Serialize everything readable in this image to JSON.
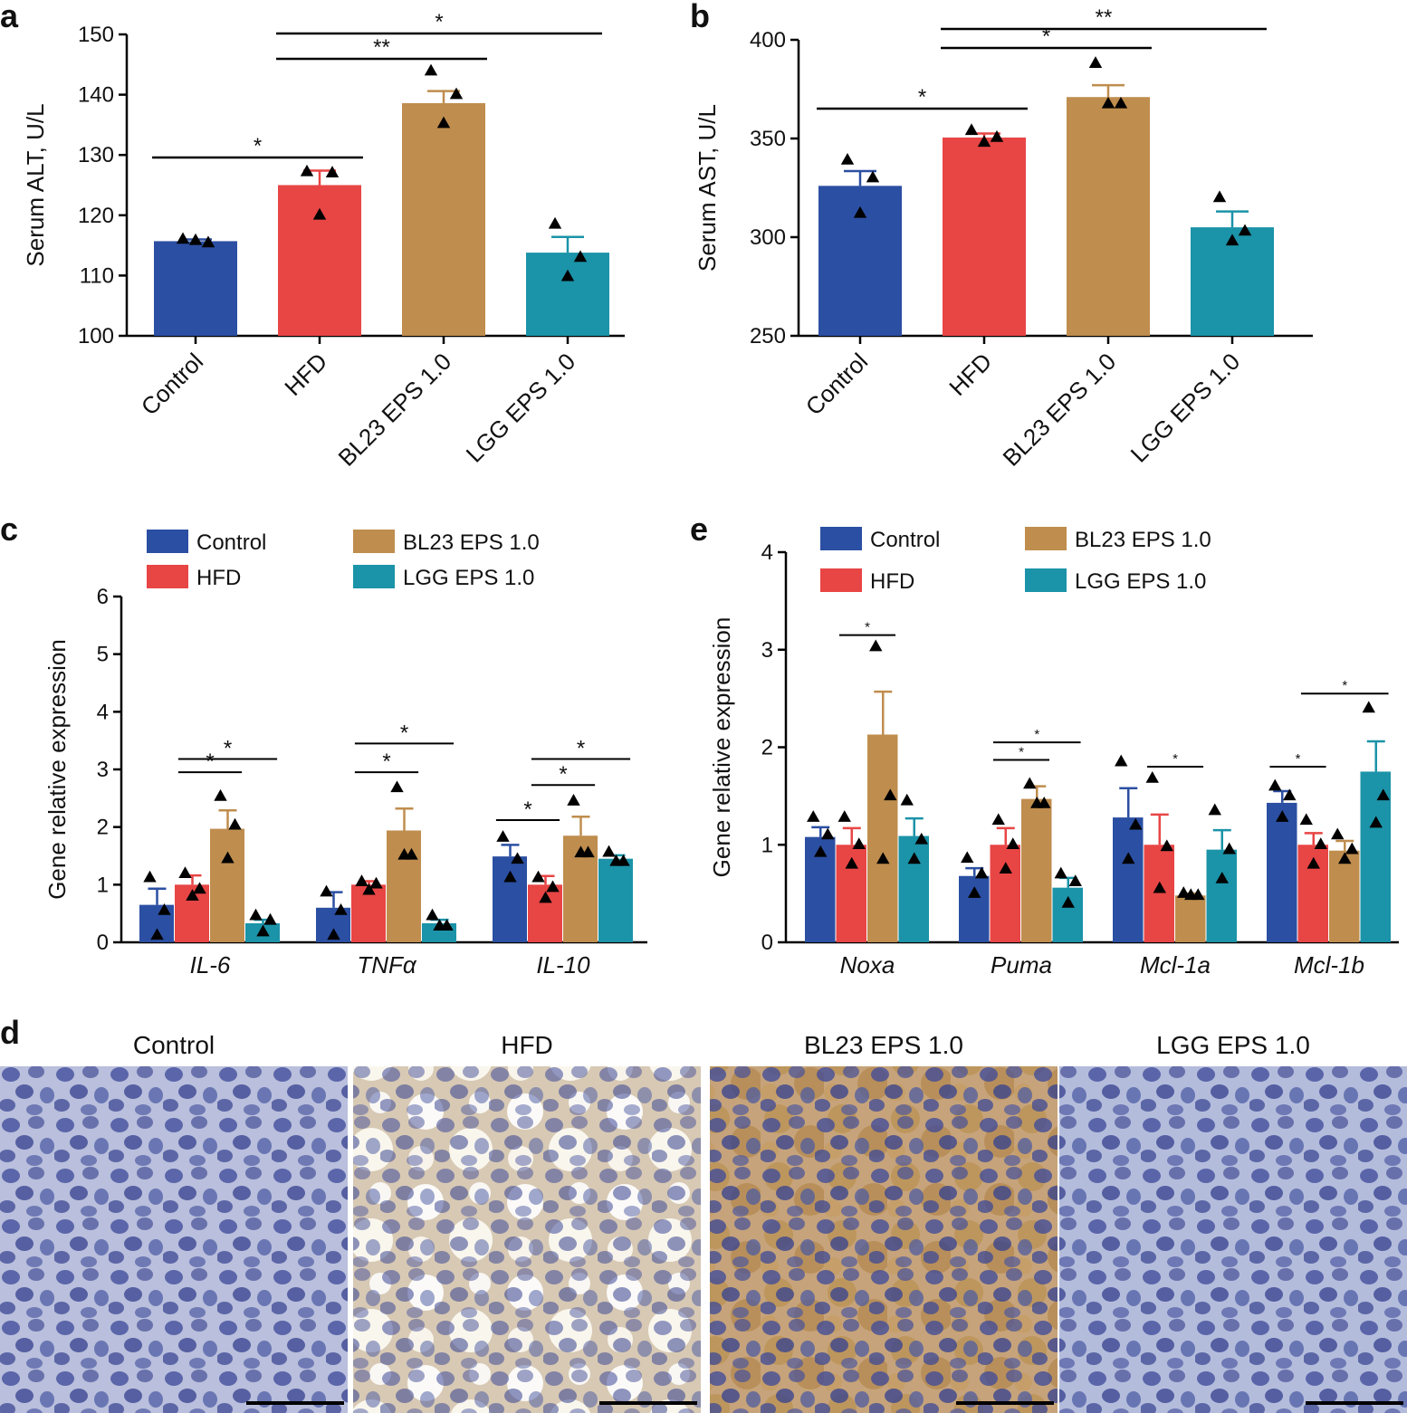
{
  "colors": {
    "Control": "#2b4fa2",
    "HFD": "#e84545",
    "BL23 EPS 1.0": "#bf8d4e",
    "LGG EPS 1.0": "#1b93a8"
  },
  "chart_data": [
    {
      "panel": "a",
      "type": "bar",
      "ylabel": "Serum ALT, U/L",
      "ylim": [
        100,
        150
      ],
      "yticks": [
        100,
        110,
        120,
        130,
        140,
        150
      ],
      "categories": [
        "Control",
        "HFD",
        "BL23 EPS 1.0",
        "LGG EPS 1.0"
      ],
      "values": [
        115.7,
        125.0,
        138.6,
        113.8
      ],
      "errors": [
        0.3,
        2.4,
        2.0,
        2.6
      ],
      "points": [
        [
          116.0,
          115.4,
          115.8
        ],
        [
          127.2,
          127.0,
          120.0
        ],
        [
          143.9,
          140.0,
          135.2
        ],
        [
          118.5,
          113.0,
          109.8
        ]
      ],
      "significance": [
        {
          "from": 0,
          "to": 1,
          "label": "*"
        },
        {
          "from": 1,
          "to": 2,
          "label": "**"
        },
        {
          "from": 1,
          "to": 3,
          "label": "*"
        }
      ]
    },
    {
      "panel": "b",
      "type": "bar",
      "ylabel": "Serum AST, U/L",
      "ylim": [
        250,
        400
      ],
      "yticks": [
        250,
        300,
        350,
        400
      ],
      "categories": [
        "Control",
        "HFD",
        "BL23 EPS 1.0",
        "LGG EPS 1.0"
      ],
      "values": [
        326.0,
        350.5,
        371.0,
        305.0
      ],
      "errors": [
        7.5,
        2.0,
        6.0,
        8.0
      ],
      "points": [
        [
          339.0,
          330.0,
          312.0
        ],
        [
          354.0,
          350.5,
          348.0
        ],
        [
          388.0,
          367.5,
          367.5
        ],
        [
          320.0,
          303.0,
          298.0
        ]
      ],
      "significance": [
        {
          "from": 0,
          "to": 1,
          "label": "*"
        },
        {
          "from": 1,
          "to": 2,
          "label": "*"
        },
        {
          "from": 1,
          "to": 3,
          "label": "**"
        }
      ]
    },
    {
      "panel": "c",
      "type": "bar",
      "ylabel": "Gene relative expression",
      "ylim": [
        0,
        6
      ],
      "yticks": [
        0,
        1,
        2,
        3,
        4,
        5,
        6
      ],
      "categories": [
        "IL-6",
        "TNFα",
        "IL-10"
      ],
      "legend": [
        "Control",
        "HFD",
        "BL23 EPS 1.0",
        "LGG EPS 1.0"
      ],
      "series": [
        {
          "name": "Control",
          "values": [
            0.65,
            0.6,
            1.49
          ],
          "errors": [
            0.28,
            0.27,
            0.2
          ],
          "points": [
            [
              1.12,
              0.55,
              0.12
            ],
            [
              0.87,
              0.55,
              0.12
            ],
            [
              1.82,
              1.44,
              1.12
            ]
          ]
        },
        {
          "name": "HFD",
          "values": [
            1.0,
            1.0,
            1.0
          ],
          "errors": [
            0.16,
            0.06,
            0.15
          ],
          "points": [
            [
              1.19,
              0.92,
              0.8
            ],
            [
              1.05,
              1.01,
              0.9
            ],
            [
              1.12,
              0.95,
              0.76
            ]
          ]
        },
        {
          "name": "BL23 EPS 1.0",
          "values": [
            1.97,
            1.94,
            1.85
          ],
          "errors": [
            0.32,
            0.38,
            0.33
          ],
          "points": [
            [
              2.53,
              2.03,
              1.45
            ],
            [
              2.68,
              1.51,
              1.51
            ],
            [
              2.45,
              1.55,
              1.55
            ]
          ]
        },
        {
          "name": "LGG EPS 1.0",
          "values": [
            0.33,
            0.33,
            1.45
          ],
          "errors": [
            0.06,
            0.06,
            0.06
          ],
          "points": [
            [
              0.46,
              0.38,
              0.18
            ],
            [
              0.46,
              0.28,
              0.28
            ],
            [
              1.56,
              1.4,
              1.4
            ]
          ]
        }
      ],
      "significance": [
        {
          "group": 0,
          "from": 1,
          "to": 2,
          "level": 2.95,
          "label": "*"
        },
        {
          "group": 0,
          "from": 1,
          "to": 3,
          "level": 3.18,
          "label": "*"
        },
        {
          "group": 1,
          "from": 1,
          "to": 2,
          "level": 2.95,
          "label": "*"
        },
        {
          "group": 1,
          "from": 1,
          "to": 3,
          "level": 3.45,
          "label": "*"
        },
        {
          "group": 2,
          "from": 0,
          "to": 1,
          "level": 2.12,
          "label": "*"
        },
        {
          "group": 2,
          "from": 1,
          "to": 2,
          "level": 2.73,
          "label": "*"
        },
        {
          "group": 2,
          "from": 1,
          "to": 3,
          "level": 3.18,
          "label": "*"
        }
      ]
    },
    {
      "panel": "e",
      "type": "bar",
      "ylabel": "Gene relative expression",
      "ylim": [
        0,
        4
      ],
      "yticks": [
        0,
        1,
        2,
        3,
        4
      ],
      "categories": [
        "Noxa",
        "Puma",
        "Mcl-1a",
        "Mcl-1b"
      ],
      "legend": [
        "Control",
        "HFD",
        "BL23 EPS 1.0",
        "LGG EPS 1.0"
      ],
      "series": [
        {
          "name": "Control",
          "values": [
            1.08,
            0.68,
            1.28,
            1.43
          ],
          "errors": [
            0.1,
            0.08,
            0.3,
            0.12
          ],
          "points": [
            [
              1.28,
              1.1,
              0.92
            ],
            [
              0.86,
              0.7,
              0.5
            ],
            [
              1.85,
              1.2,
              0.85
            ],
            [
              1.6,
              1.5,
              1.28
            ]
          ]
        },
        {
          "name": "HFD",
          "values": [
            1.0,
            1.0,
            1.0,
            1.0
          ],
          "errors": [
            0.17,
            0.17,
            0.31,
            0.12
          ],
          "points": [
            [
              1.28,
              1.0,
              0.8
            ],
            [
              1.25,
              1.0,
              0.75
            ],
            [
              1.68,
              0.98,
              0.55
            ],
            [
              1.25,
              1.0,
              0.8
            ]
          ]
        },
        {
          "name": "BL23 EPS 1.0",
          "values": [
            2.13,
            1.47,
            0.48,
            0.94
          ],
          "errors": [
            0.44,
            0.13,
            0.02,
            0.1
          ],
          "points": [
            [
              3.03,
              1.5,
              0.85
            ],
            [
              1.62,
              1.42,
              1.42
            ],
            [
              0.5,
              0.48,
              0.48
            ],
            [
              1.1,
              0.95,
              0.85
            ]
          ]
        },
        {
          "name": "LGG EPS 1.0",
          "values": [
            1.09,
            0.56,
            0.95,
            1.75
          ],
          "errors": [
            0.18,
            0.1,
            0.2,
            0.31
          ],
          "points": [
            [
              1.45,
              1.05,
              0.85
            ],
            [
              0.7,
              0.62,
              0.4
            ],
            [
              1.35,
              0.95,
              0.65
            ],
            [
              2.4,
              1.5,
              1.22
            ]
          ]
        }
      ],
      "significance": [
        {
          "group": 0,
          "from": 1,
          "to": 2,
          "level": 3.15,
          "label": "*"
        },
        {
          "group": 1,
          "from": 1,
          "to": 2,
          "level": 1.87,
          "label": "*"
        },
        {
          "group": 1,
          "from": 1,
          "to": 3,
          "level": 2.05,
          "label": "*"
        },
        {
          "group": 2,
          "from": 1,
          "to": 2,
          "level": 1.8,
          "label": "*"
        },
        {
          "group": 3,
          "from": 0,
          "to": 1,
          "level": 1.8,
          "label": "*"
        },
        {
          "group": 3,
          "from": 1,
          "to": 3,
          "level": 2.55,
          "label": "*"
        }
      ]
    }
  ],
  "micrographs": {
    "panel": "d",
    "titles": [
      "Control",
      "HFD",
      "BL23 EPS 1.0",
      "LGG EPS 1.0"
    ],
    "stain_levels": [
      0.15,
      0.35,
      0.85,
      0.08
    ]
  }
}
